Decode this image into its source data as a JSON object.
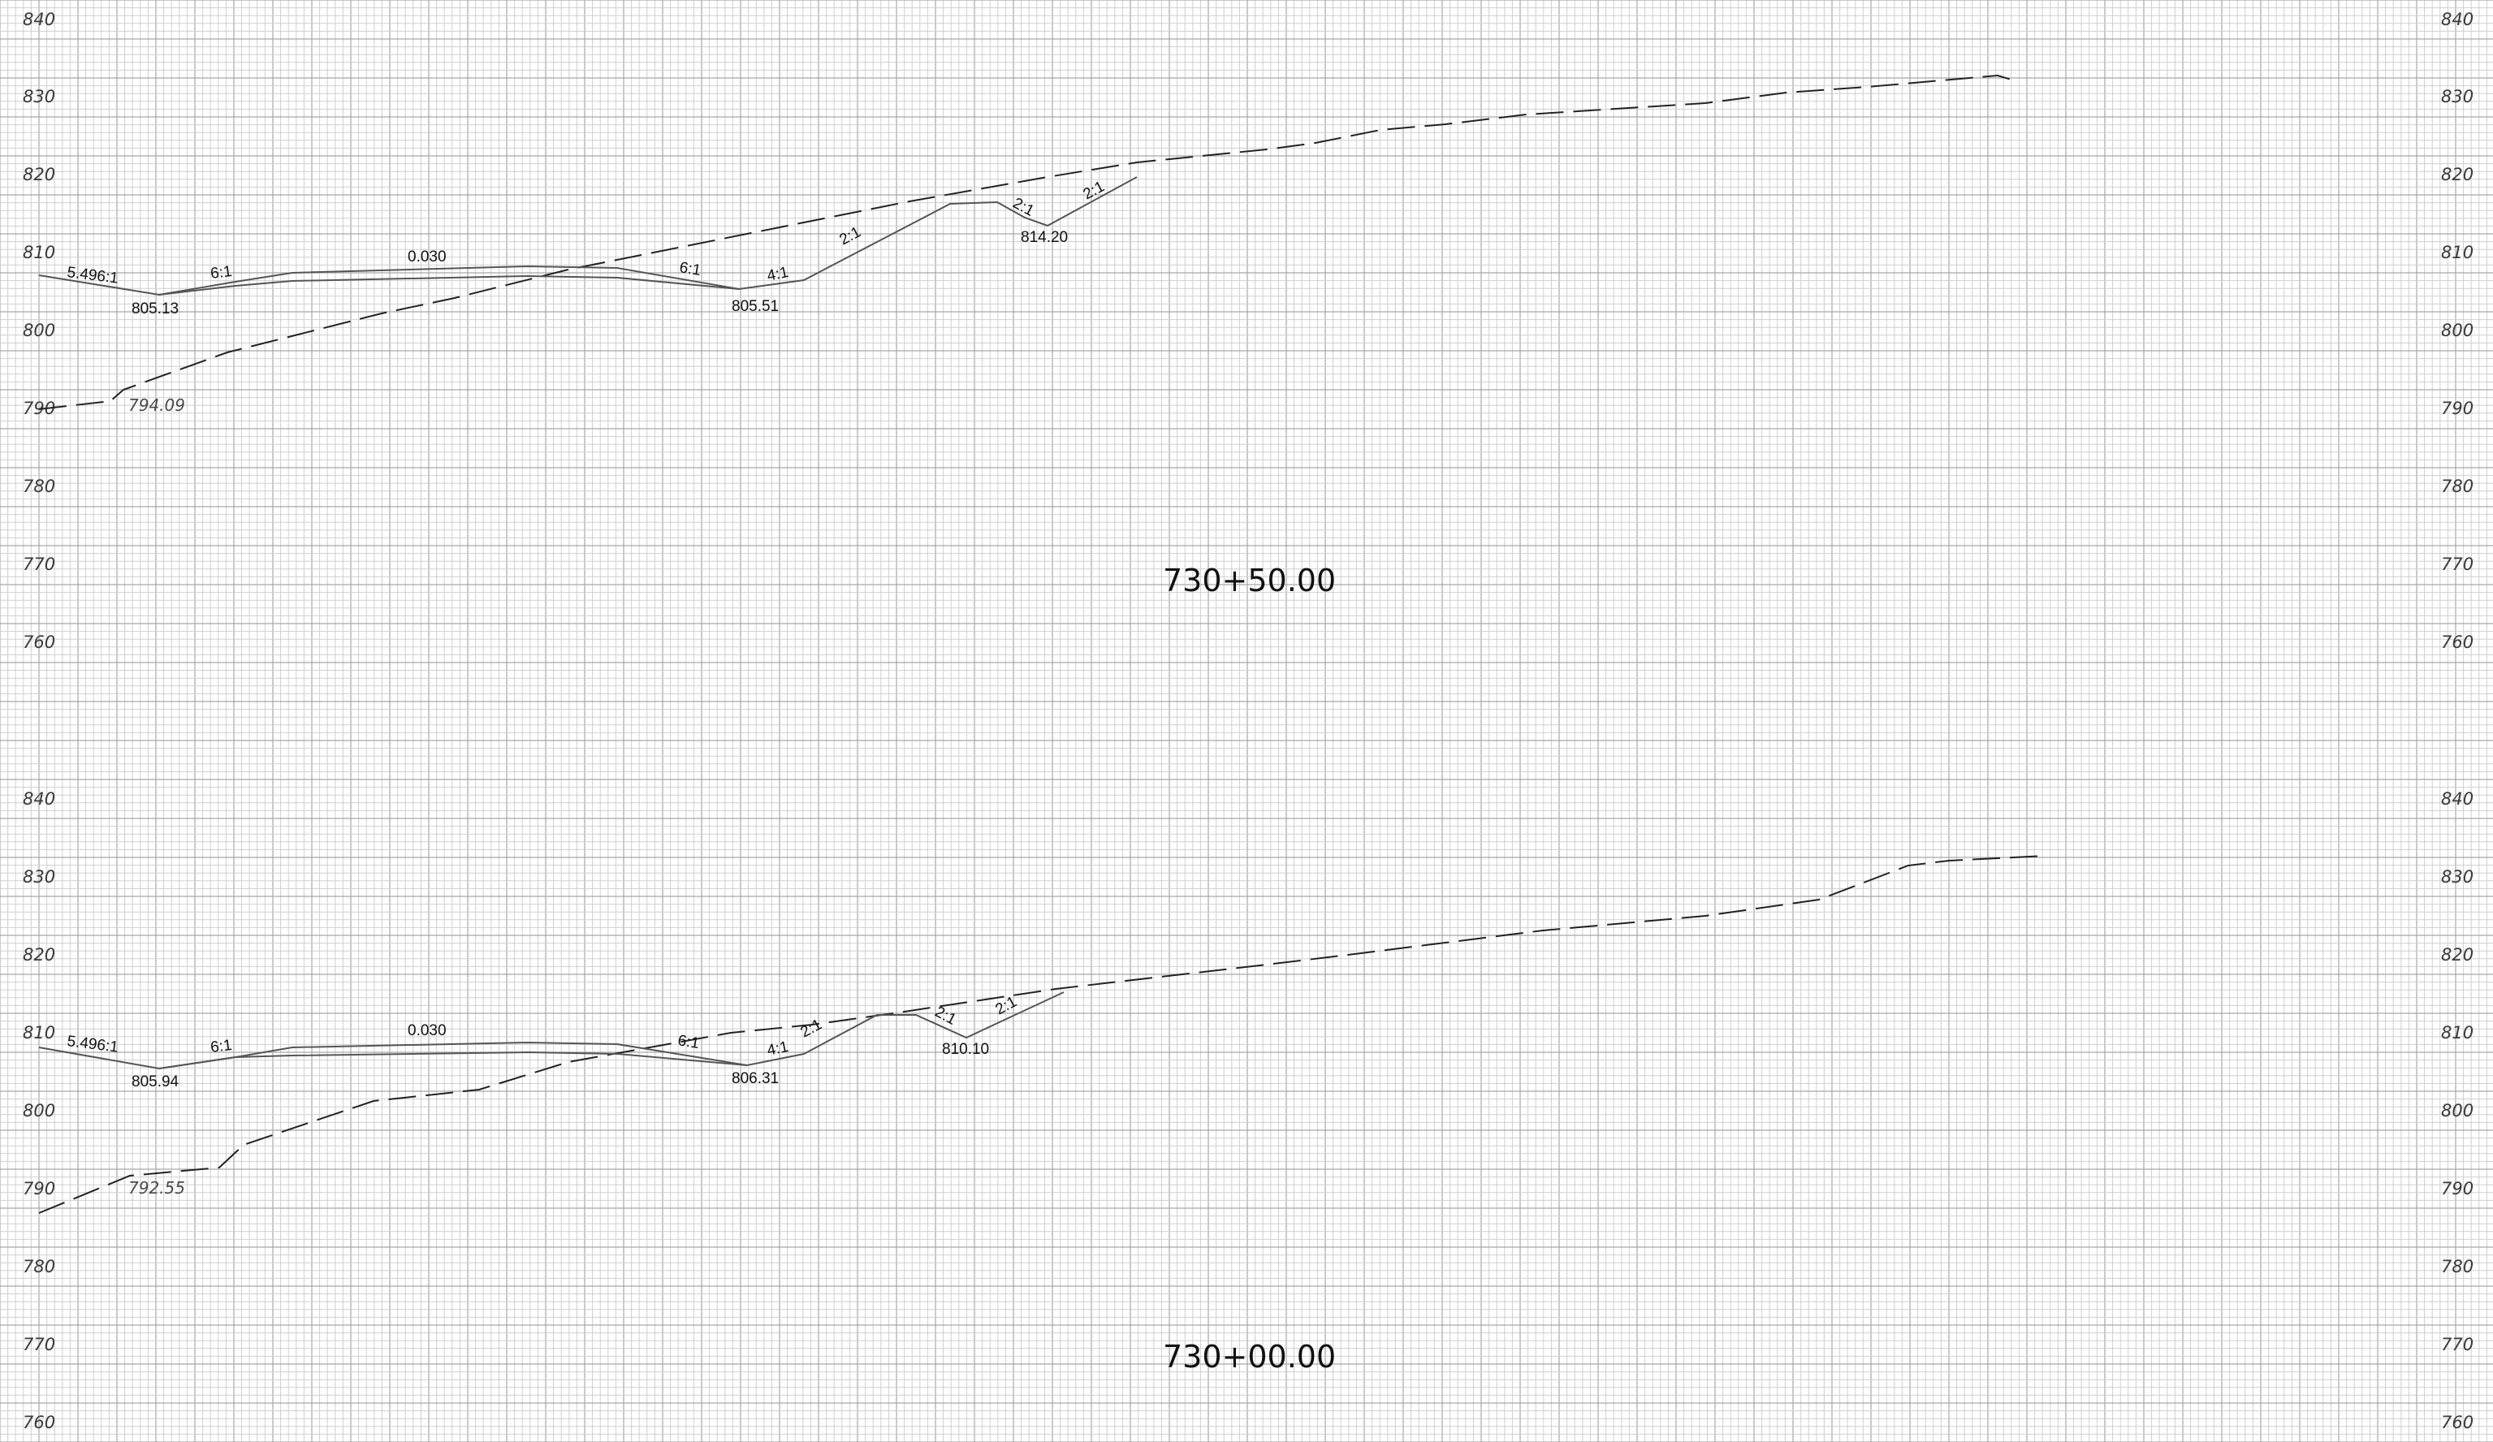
{
  "colors": {
    "background": "#ffffff",
    "grid_minor": "#cfcfcf",
    "grid_major": "#a8a8a8",
    "design_line": "#555555",
    "ground_line": "#222222"
  },
  "sections": [
    {
      "station": "730+50.00",
      "elevations": [
        "840",
        "830",
        "820",
        "810",
        "800",
        "790",
        "780",
        "770",
        "760"
      ],
      "labels": [
        "5.496:1",
        "6:1",
        "0.030",
        "6:1",
        "4:1",
        "2:1",
        "2:1",
        "2:1",
        "805.13",
        "805.51",
        "814.20"
      ],
      "ground_label": "794.09"
    },
    {
      "station": "730+00.00",
      "elevations": [
        "840",
        "830",
        "820",
        "810",
        "800",
        "790",
        "780",
        "770",
        "760"
      ],
      "labels": [
        "5.496:1",
        "6:1",
        "0.030",
        "6:1",
        "4:1",
        "2:1",
        "2:1",
        "2:1",
        "805.94",
        "806.31",
        "810.10"
      ],
      "ground_label": "792.55"
    }
  ]
}
